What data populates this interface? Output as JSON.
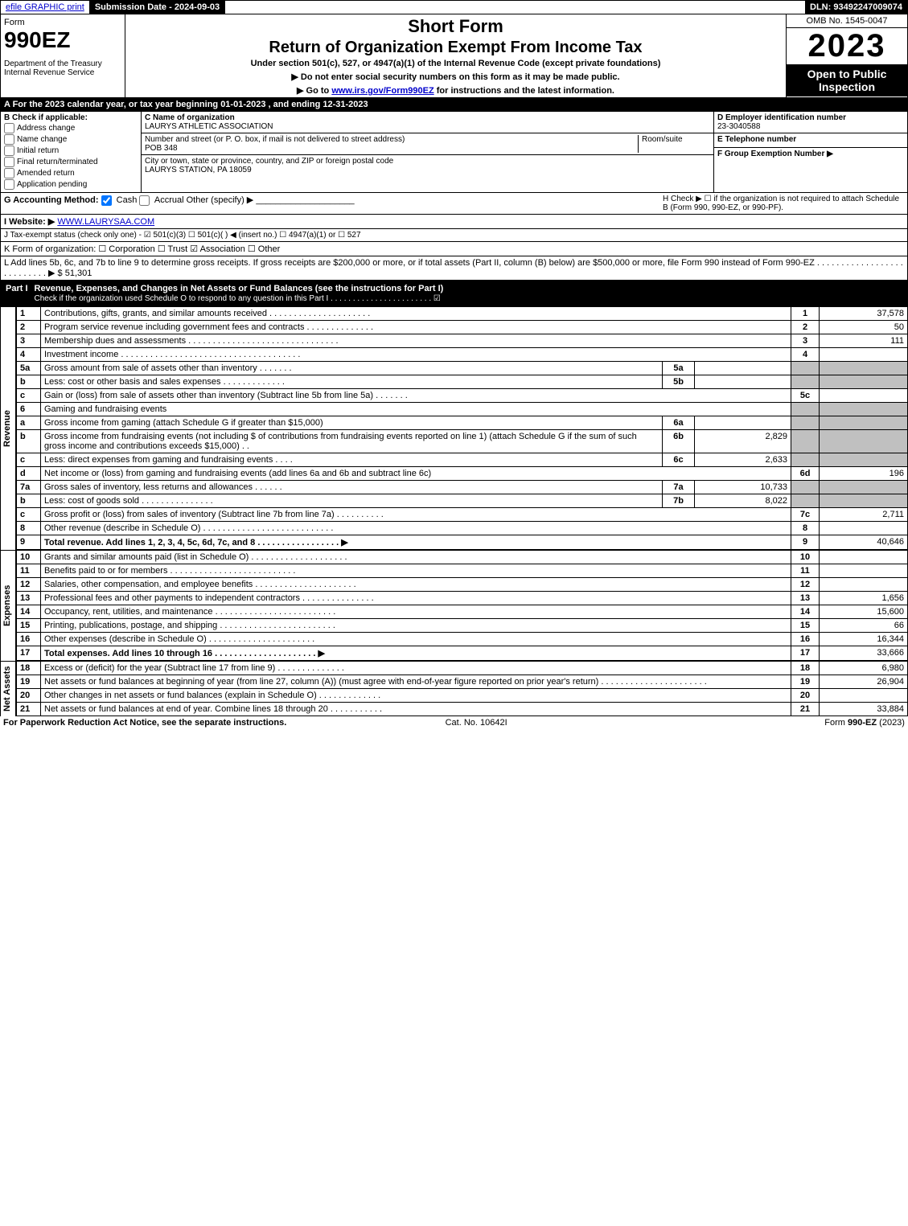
{
  "topbar": {
    "efile": "efile GRAPHIC print",
    "submission_label": "Submission Date - 2024-09-03",
    "dln_label": "DLN: 93492247009074"
  },
  "header": {
    "form_word": "Form",
    "form_number": "990EZ",
    "dept": "Department of the Treasury",
    "irs": "Internal Revenue Service",
    "short_form": "Short Form",
    "return_line": "Return of Organization Exempt From Income Tax",
    "under_section": "Under section 501(c), 527, or 4947(a)(1) of the Internal Revenue Code (except private foundations)",
    "note1": "▶ Do not enter social security numbers on this form as it may be made public.",
    "note2_pre": "▶ Go to ",
    "note2_link": "www.irs.gov/Form990EZ",
    "note2_post": " for instructions and the latest information.",
    "omb": "OMB No. 1545-0047",
    "year": "2023",
    "open": "Open to Public Inspection"
  },
  "lineA": "A  For the 2023 calendar year, or tax year beginning 01-01-2023 , and ending 12-31-2023",
  "sectionB": {
    "header": "B  Check if applicable:",
    "opts": [
      "Address change",
      "Name change",
      "Initial return",
      "Final return/terminated",
      "Amended return",
      "Application pending"
    ],
    "c_label": "C Name of organization",
    "c_name": "LAURYS ATHLETIC ASSOCIATION",
    "street_label": "Number and street (or P. O. box, if mail is not delivered to street address)",
    "room_label": "Room/suite",
    "street": "POB 348",
    "city_label": "City or town, state or province, country, and ZIP or foreign postal code",
    "city": "LAURYS STATION, PA  18059",
    "d_label": "D Employer identification number",
    "d_val": "23-3040588",
    "e_label": "E Telephone number",
    "f_label": "F Group Exemption Number   ▶"
  },
  "lineG": {
    "label": "G Accounting Method:",
    "cash": "Cash",
    "accrual": "Accrual",
    "other": "Other (specify) ▶"
  },
  "lineH": "H   Check ▶ ☐ if the organization is not required to attach Schedule B (Form 990, 990-EZ, or 990-PF).",
  "lineI": {
    "label": "I Website: ▶",
    "url": "WWW.LAURYSAA.COM"
  },
  "lineJ": "J Tax-exempt status (check only one) - ☑ 501(c)(3) ☐ 501(c)(  ) ◀ (insert no.) ☐ 4947(a)(1) or ☐ 527",
  "lineK": "K Form of organization:  ☐ Corporation  ☐ Trust  ☑ Association  ☐ Other",
  "lineL": {
    "text": "L Add lines 5b, 6c, and 7b to line 9 to determine gross receipts. If gross receipts are $200,000 or more, or if total assets (Part II, column (B) below) are $500,000 or more, file Form 990 instead of Form 990-EZ  . . . . . . . . . . . . . . . . . . . . . . . . . . .  ▶ $",
    "val": "51,301"
  },
  "part1": {
    "tag": "Part I",
    "title": "Revenue, Expenses, and Changes in Net Assets or Fund Balances (see the instructions for Part I)",
    "sub": "Check if the organization used Schedule O to respond to any question in this Part I . . . . . . . . . . . . . . . . . . . . . . .  ☑"
  },
  "revenue_label": "Revenue",
  "expenses_label": "Expenses",
  "netassets_label": "Net Assets",
  "lines": [
    {
      "n": "1",
      "desc": "Contributions, gifts, grants, and similar amounts received . . . . . . . . . . . . . . . . . . . . .",
      "rno": "1",
      "val": "37,578"
    },
    {
      "n": "2",
      "desc": "Program service revenue including government fees and contracts . . . . . . . . . . . . . .",
      "rno": "2",
      "val": "50"
    },
    {
      "n": "3",
      "desc": "Membership dues and assessments . . . . . . . . . . . . . . . . . . . . . . . . . . . . . . .",
      "rno": "3",
      "val": "111"
    },
    {
      "n": "4",
      "desc": "Investment income . . . . . . . . . . . . . . . . . . . . . . . . . . . . . . . . . . . . .",
      "rno": "4",
      "val": ""
    },
    {
      "n": "5a",
      "desc": "Gross amount from sale of assets other than inventory . . . . . . .",
      "mid": "5a",
      "midval": "",
      "grey": true
    },
    {
      "n": "b",
      "desc": "Less: cost or other basis and sales expenses . . . . . . . . . . . . .",
      "mid": "5b",
      "midval": "",
      "grey": true
    },
    {
      "n": "c",
      "desc": "Gain or (loss) from sale of assets other than inventory (Subtract line 5b from line 5a) . . . . . . .",
      "rno": "5c",
      "val": ""
    },
    {
      "n": "6",
      "desc": "Gaming and fundraising events",
      "grey": true,
      "nobox": true
    },
    {
      "n": "a",
      "desc": "Gross income from gaming (attach Schedule G if greater than $15,000)",
      "mid": "6a",
      "midval": "",
      "grey": true
    },
    {
      "n": "b",
      "desc": "Gross income from fundraising events (not including $                          of contributions from fundraising events reported on line 1) (attach Schedule G if the sum of such gross income and contributions exceeds $15,000)   .    .",
      "mid": "6b",
      "midval": "2,829",
      "grey": true
    },
    {
      "n": "c",
      "desc": "Less: direct expenses from gaming and fundraising events     . . . .",
      "mid": "6c",
      "midval": "2,633",
      "grey": true
    },
    {
      "n": "d",
      "desc": "Net income or (loss) from gaming and fundraising events (add lines 6a and 6b and subtract line 6c)",
      "rno": "6d",
      "val": "196"
    },
    {
      "n": "7a",
      "desc": "Gross sales of inventory, less returns and allowances . . . . . .",
      "mid": "7a",
      "midval": "10,733",
      "grey": true
    },
    {
      "n": "b",
      "desc": "Less: cost of goods sold        . . . . . . . . . . . . . . .",
      "mid": "7b",
      "midval": "8,022",
      "grey": true
    },
    {
      "n": "c",
      "desc": "Gross profit or (loss) from sales of inventory (Subtract line 7b from line 7a) . . . . . . . . . .",
      "rno": "7c",
      "val": "2,711"
    },
    {
      "n": "8",
      "desc": "Other revenue (describe in Schedule O) . . . . . . . . . . . . . . . . . . . . . . . . . . .",
      "rno": "8",
      "val": ""
    },
    {
      "n": "9",
      "desc": "Total revenue. Add lines 1, 2, 3, 4, 5c, 6d, 7c, and 8  . . . . . . . . . . . . . . . . .    ▶",
      "rno": "9",
      "val": "40,646",
      "bold": true
    }
  ],
  "exp_lines": [
    {
      "n": "10",
      "desc": "Grants and similar amounts paid (list in Schedule O) . . . . . . . . . . . . . . . . . . . .",
      "rno": "10",
      "val": ""
    },
    {
      "n": "11",
      "desc": "Benefits paid to or for members      . . . . . . . . . . . . . . . . . . . . . . . . . .",
      "rno": "11",
      "val": ""
    },
    {
      "n": "12",
      "desc": "Salaries, other compensation, and employee benefits . . . . . . . . . . . . . . . . . . . . .",
      "rno": "12",
      "val": ""
    },
    {
      "n": "13",
      "desc": "Professional fees and other payments to independent contractors . . . . . . . . . . . . . . .",
      "rno": "13",
      "val": "1,656"
    },
    {
      "n": "14",
      "desc": "Occupancy, rent, utilities, and maintenance . . . . . . . . . . . . . . . . . . . . . . . . .",
      "rno": "14",
      "val": "15,600"
    },
    {
      "n": "15",
      "desc": "Printing, publications, postage, and shipping . . . . . . . . . . . . . . . . . . . . . . . .",
      "rno": "15",
      "val": "66"
    },
    {
      "n": "16",
      "desc": "Other expenses (describe in Schedule O)      . . . . . . . . . . . . . . . . . . . . . .",
      "rno": "16",
      "val": "16,344"
    },
    {
      "n": "17",
      "desc": "Total expenses. Add lines 10 through 16      . . . . . . . . . . . . . . . . . . . . .    ▶",
      "rno": "17",
      "val": "33,666",
      "bold": true
    }
  ],
  "na_lines": [
    {
      "n": "18",
      "desc": "Excess or (deficit) for the year (Subtract line 17 from line 9)        . . . . . . . . . . . . . .",
      "rno": "18",
      "val": "6,980"
    },
    {
      "n": "19",
      "desc": "Net assets or fund balances at beginning of year (from line 27, column (A)) (must agree with end-of-year figure reported on prior year's return) . . . . . . . . . . . . . . . . . . . . . .",
      "rno": "19",
      "val": "26,904"
    },
    {
      "n": "20",
      "desc": "Other changes in net assets or fund balances (explain in Schedule O) . . . . . . . . . . . . .",
      "rno": "20",
      "val": ""
    },
    {
      "n": "21",
      "desc": "Net assets or fund balances at end of year. Combine lines 18 through 20 . . . . . . . . . . .",
      "rno": "21",
      "val": "33,884"
    }
  ],
  "footer": {
    "left": "For Paperwork Reduction Act Notice, see the separate instructions.",
    "mid": "Cat. No. 10642I",
    "right": "Form 990-EZ (2023)"
  },
  "colors": {
    "black": "#000000",
    "grey": "#c0c0c0",
    "link": "#0000cc"
  }
}
